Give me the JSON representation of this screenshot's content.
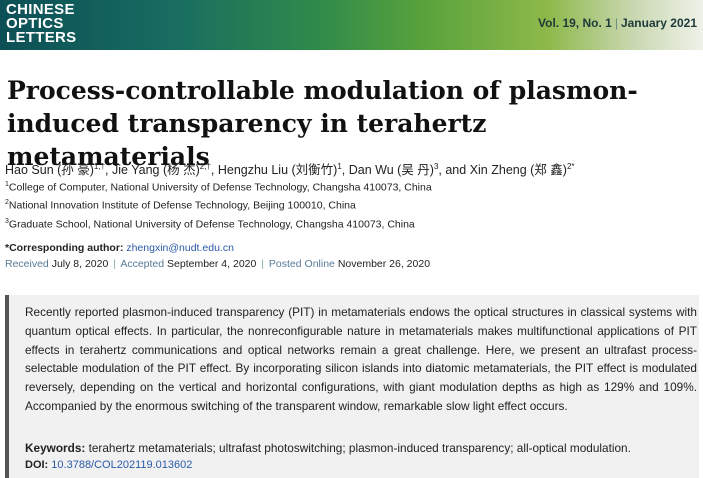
{
  "journal": {
    "logo_lines": [
      "CHINESE",
      "OPTICS",
      "LETTERS"
    ],
    "volume": "Vol. 19, No. 1",
    "date": "January 2021"
  },
  "title": "Process-controllable modulation of plasmon-induced transparency in terahertz metamaterials",
  "authors": [
    {
      "name": "Hao Sun (孙 豪)",
      "sup": "1,†"
    },
    {
      "name": "Jie Yang (杨 杰)",
      "sup": "2,†"
    },
    {
      "name": "Hengzhu Liu (刘衡竹)",
      "sup": "1"
    },
    {
      "name": "Dan Wu (吴 丹)",
      "sup": "3"
    },
    {
      "name": "Xin Zheng (郑 鑫)",
      "sup": "2*"
    }
  ],
  "author_separators": [
    ", ",
    ", ",
    ", ",
    ", and "
  ],
  "affiliations": [
    {
      "num": "1",
      "text": "College of Computer, National University of Defense Technology, Changsha 410073, China"
    },
    {
      "num": "2",
      "text": "National Innovation Institute of Defense Technology, Beijing 100010, China"
    },
    {
      "num": "3",
      "text": "Graduate School, National University of Defense Technology, Changsha 410073, China"
    }
  ],
  "corresponding": {
    "label": "*Corresponding author:",
    "email": "zhengxin@nudt.edu.cn"
  },
  "dates": {
    "received_label": "Received",
    "received": "July 8, 2020",
    "accepted_label": "Accepted",
    "accepted": "September 4, 2020",
    "posted_label": "Posted Online",
    "posted": "November 26, 2020",
    "separator": "|"
  },
  "abstract": "Recently reported plasmon-induced transparency (PIT) in metamaterials endows the optical structures in classical systems with quantum optical effects. In particular, the nonreconfigurable nature in metamaterials makes multifunctional applications of PIT effects in terahertz communications and optical networks remain a great challenge. Here, we present an ultrafast process-selectable modulation of the PIT effect. By incorporating silicon islands into diatomic metamaterials, the PIT effect is modulated reversely, depending on the vertical and horizontal configurations, with giant modulation depths as high as 129% and 109%. Accompanied by the enormous switching of the transparent window, remarkable slow light effect occurs.",
  "keywords": {
    "label": "Keywords:",
    "text": "terahertz metamaterials; ultrafast photoswitching; plasmon-induced transparency; all-optical modulation."
  },
  "doi": {
    "label": "DOI:",
    "value": "10.3788/COL202119.013602"
  }
}
